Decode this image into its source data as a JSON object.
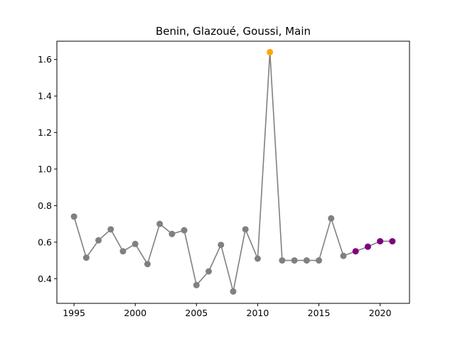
{
  "chart_data": {
    "type": "line",
    "title": "Benin, Glazoué, Goussi, Main",
    "xlabel": "",
    "ylabel": "",
    "xlim": [
      1993.6,
      2022.4
    ],
    "ylim": [
      0.265,
      1.7
    ],
    "xticks": [
      1995,
      2000,
      2005,
      2010,
      2015,
      2020
    ],
    "yticks": [
      0.4,
      0.6,
      0.8,
      1.0,
      1.2,
      1.4,
      1.6
    ],
    "grid": false,
    "line_color": "#808080",
    "x": [
      1995,
      1996,
      1997,
      1998,
      1999,
      2000,
      2001,
      2002,
      2003,
      2004,
      2005,
      2006,
      2007,
      2008,
      2009,
      2010,
      2011,
      2012,
      2013,
      2014,
      2015,
      2016,
      2017,
      2018,
      2019,
      2020,
      2021
    ],
    "values": [
      0.74,
      0.515,
      0.61,
      0.67,
      0.55,
      0.59,
      0.48,
      0.7,
      0.645,
      0.665,
      0.365,
      0.44,
      0.585,
      0.33,
      0.67,
      0.51,
      1.64,
      0.5,
      0.5,
      0.5,
      0.5,
      0.73,
      0.525,
      0.55,
      0.575,
      0.605,
      0.605
    ],
    "point_colors": [
      "#808080",
      "#808080",
      "#808080",
      "#808080",
      "#808080",
      "#808080",
      "#808080",
      "#808080",
      "#808080",
      "#808080",
      "#808080",
      "#808080",
      "#808080",
      "#808080",
      "#808080",
      "#808080",
      "#ffa500",
      "#808080",
      "#808080",
      "#808080",
      "#808080",
      "#808080",
      "#808080",
      "#800080",
      "#800080",
      "#800080",
      "#800080"
    ]
  }
}
